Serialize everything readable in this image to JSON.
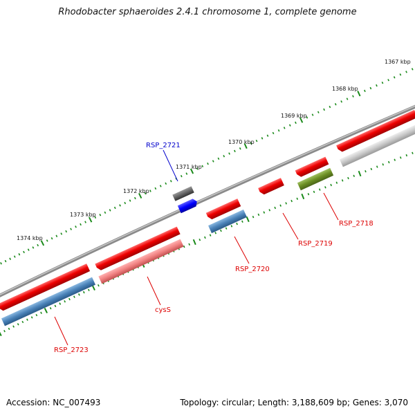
{
  "header": {
    "title": "Rhodobacter sphaeroides 2.4.1 chromosome 1, complete genome"
  },
  "footer": {
    "accession": "Accession: NC_007493",
    "summary": "Topology: circular; Length: 3,188,609 bp; Genes: 3,070"
  },
  "kbp_labels": [
    "1367 kbp",
    "1368 kbp",
    "1369 kbp",
    "1370 kbp",
    "1371 kbp",
    "1372 kbp",
    "1373 kbp",
    "1374 kbp"
  ],
  "gene_labels": [
    {
      "text": "RSP_2721",
      "color": "#0000cc"
    },
    {
      "text": "RSP_2718",
      "color": "#dd0000"
    },
    {
      "text": "RSP_2719",
      "color": "#dd0000"
    },
    {
      "text": "RSP_2720",
      "color": "#dd0000"
    },
    {
      "text": "cysS",
      "color": "#dd0000"
    },
    {
      "text": "RSP_2723",
      "color": "#dd0000"
    }
  ],
  "colors": {
    "backbone": "#8a8a8a",
    "feature_red": "#ee0000",
    "feature_pink": "#f08080",
    "feature_steelblue": "#4a82b8",
    "feature_gray": "#c8c8c8",
    "feature_olive": "#6b8e23",
    "feature_dark_gray": "#666666",
    "feature_blue": "#0000ff",
    "tick_green": "#1a8a1a"
  }
}
